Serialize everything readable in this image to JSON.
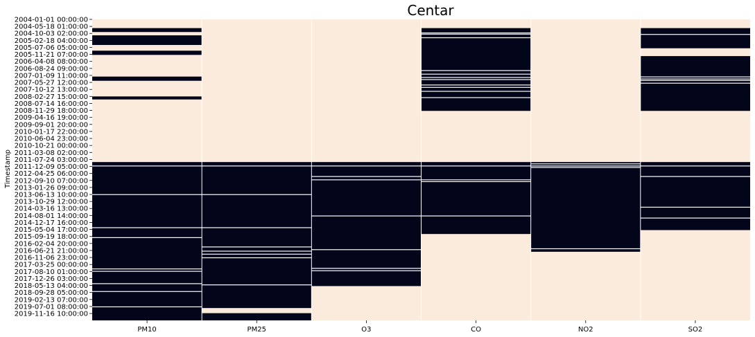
{
  "chart_data": {
    "type": "heatmap",
    "title": "Centar",
    "xlabel": "",
    "ylabel": "Timestamp",
    "colors": {
      "missing": "#faebdd",
      "present": "#03051a",
      "separator": "#ffffff"
    },
    "columns": [
      "PM10",
      "PM25",
      "O3",
      "CO",
      "NO2",
      "SO2"
    ],
    "y_tick_labels": [
      "2004-01-01 00:00:00",
      "2004-05-18 01:00:00",
      "2004-10-03 02:00:00",
      "2005-02-18 04:00:00",
      "2005-07-06 05:00:00",
      "2005-11-21 07:00:00",
      "2006-04-08 08:00:00",
      "2006-08-24 09:00:00",
      "2007-01-09 11:00:00",
      "2007-05-27 12:00:00",
      "2007-10-12 13:00:00",
      "2008-02-27 15:00:00",
      "2008-07-14 16:00:00",
      "2008-11-29 18:00:00",
      "2009-04-16 19:00:00",
      "2009-09-01 20:00:00",
      "2010-01-17 22:00:00",
      "2010-06-04 23:00:00",
      "2010-10-21 00:00:00",
      "2011-03-08 02:00:00",
      "2011-07-24 03:00:00",
      "2011-12-09 05:00:00",
      "2012-04-25 06:00:00",
      "2012-09-10 07:00:00",
      "2013-01-26 09:00:00",
      "2013-06-13 10:00:00",
      "2013-10-29 12:00:00",
      "2014-03-16 13:00:00",
      "2014-08-01 14:00:00",
      "2014-12-17 16:00:00",
      "2015-05-04 17:00:00",
      "2015-09-19 18:00:00",
      "2016-02-04 20:00:00",
      "2016-06-21 21:00:00",
      "2016-11-06 23:00:00",
      "2017-03-25 00:00:00",
      "2017-08-10 01:00:00",
      "2017-12-26 03:00:00",
      "2018-05-13 04:00:00",
      "2018-09-28 05:00:00",
      "2019-02-13 07:00:00",
      "2019-07-01 08:00:00",
      "2019-11-16 10:00:00"
    ],
    "data_coverage_note_units": "fraction of time range from first to last row",
    "present_ranges": {
      "PM10": [
        [
          0.029,
          0.042
        ],
        [
          0.053,
          0.085
        ],
        [
          0.104,
          0.118
        ],
        [
          0.19,
          0.204
        ],
        [
          0.256,
          0.266
        ],
        [
          0.474,
          1.0
        ]
      ],
      "PM25": [
        [
          0.474,
          0.959
        ],
        [
          0.976,
          1.0
        ]
      ],
      "O3": [
        [
          0.474,
          0.886
        ]
      ],
      "CO": [
        [
          0.029,
          0.304
        ],
        [
          0.474,
          0.713
        ]
      ],
      "NO2": [
        [
          0.474,
          0.772
        ]
      ],
      "SO2": [
        [
          0.029,
          0.096
        ],
        [
          0.122,
          0.304
        ],
        [
          0.474,
          0.7
        ]
      ]
    },
    "gaps": {
      "PM10": [
        0.487,
        0.582,
        0.692,
        0.725,
        0.829,
        0.837,
        0.878,
        0.904,
        0.955
      ],
      "PM25": [
        0.487,
        0.582,
        0.692,
        0.756,
        0.77,
        0.78,
        0.792,
        0.882
      ],
      "O3": [
        0.487,
        0.522,
        0.533,
        0.653,
        0.765,
        0.827,
        0.835
      ],
      "CO": [
        0.045,
        0.049,
        0.061,
        0.17,
        0.182,
        0.193,
        0.2,
        0.218,
        0.226,
        0.239,
        0.26,
        0.487,
        0.533,
        0.539,
        0.653
      ],
      "NO2": [
        0.48,
        0.487,
        0.492,
        0.762
      ],
      "SO2": [
        0.05,
        0.191,
        0.198,
        0.203,
        0.212,
        0.487,
        0.522,
        0.624,
        0.66
      ]
    }
  }
}
